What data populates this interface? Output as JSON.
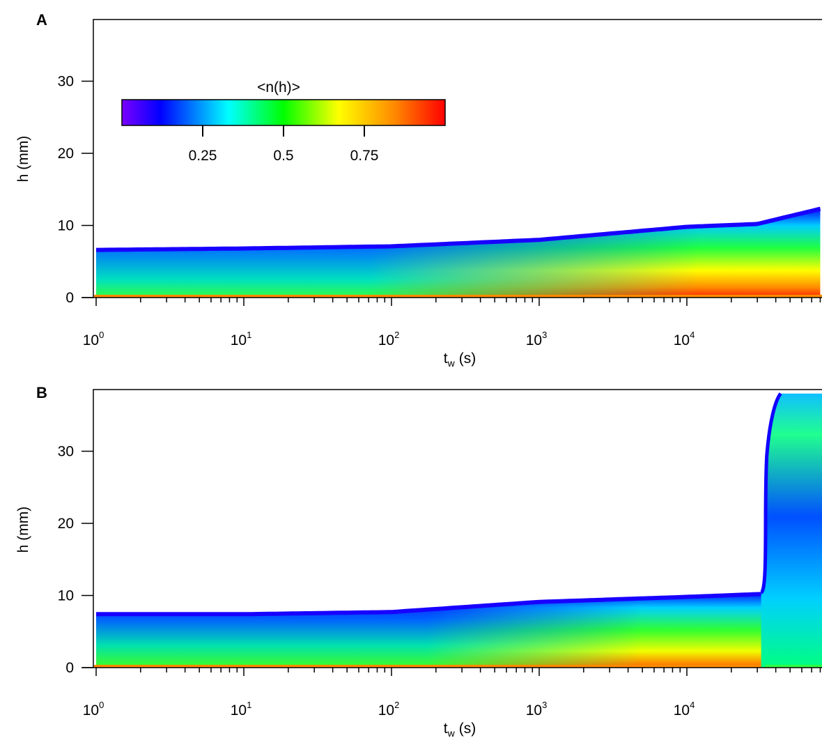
{
  "chart_data": [
    {
      "panel": "A",
      "type": "heatmap",
      "xlabel": "t",
      "xlabel_sub": "w",
      "xlabel_unit": "(s)",
      "ylabel": "h (mm)",
      "x_scale": "log",
      "xlim": [
        1,
        80000
      ],
      "ylim": [
        0,
        38
      ],
      "x_ticks": [
        1,
        10,
        100,
        1000,
        10000
      ],
      "x_tick_base": "10",
      "x_tick_exponents": [
        "0",
        "1",
        "2",
        "3",
        "4"
      ],
      "y_ticks": [
        0,
        10,
        20,
        30
      ],
      "y_tick_labels": [
        "0",
        "10",
        "20",
        "30"
      ],
      "colorbar": {
        "title": "<n(h)>",
        "placement": "top-left",
        "range": [
          0,
          1
        ],
        "ticks": [
          0.25,
          0.5,
          0.75
        ],
        "tick_labels": [
          "0.25",
          "0.5",
          "0.75"
        ],
        "colormap": [
          "#7a00ff",
          "#0000ff",
          "#00ffff",
          "#00ff00",
          "#ffff00",
          "#ff8c00",
          "#ff0000"
        ]
      },
      "surface_height_mm": {
        "t": [
          1,
          10,
          100,
          1000,
          10000,
          30000,
          80000
        ],
        "h": [
          6.8,
          7.0,
          7.3,
          8.2,
          10.0,
          10.4,
          12.5
        ]
      },
      "description_values": {
        "n_top": 0.08,
        "n_bottom_early": 0.42,
        "n_bottom_late": 0.95
      }
    },
    {
      "panel": "B",
      "type": "heatmap",
      "xlabel": "t",
      "xlabel_sub": "w",
      "xlabel_unit": "(s)",
      "ylabel": "h (mm)",
      "x_scale": "log",
      "xlim": [
        1,
        80000
      ],
      "ylim": [
        0,
        38
      ],
      "x_ticks": [
        1,
        10,
        100,
        1000,
        10000
      ],
      "x_tick_base": "10",
      "x_tick_exponents": [
        "0",
        "1",
        "2",
        "3",
        "4"
      ],
      "y_ticks": [
        0,
        10,
        20,
        30
      ],
      "y_tick_labels": [
        "0",
        "10",
        "20",
        "30"
      ],
      "surface_height_mm": {
        "t": [
          1,
          10,
          100,
          1000,
          10000,
          32000
        ],
        "h": [
          7.6,
          7.6,
          7.9,
          9.3,
          10.0,
          10.4
        ]
      },
      "eruption": {
        "t_start": 34000,
        "h_top": 38
      }
    }
  ]
}
